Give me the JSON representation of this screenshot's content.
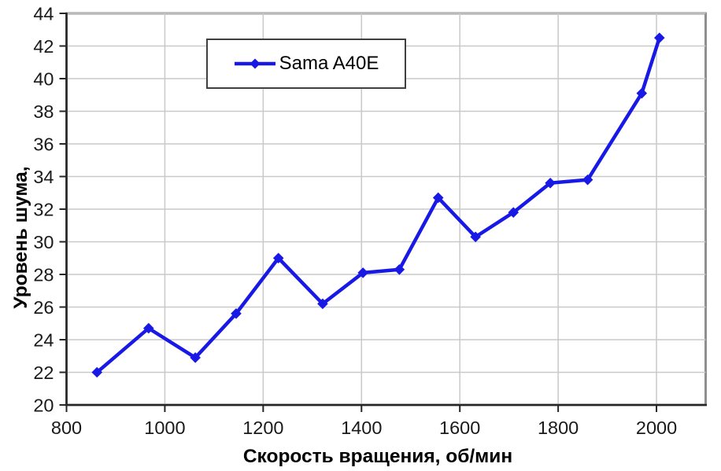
{
  "chart_data": {
    "type": "line",
    "title": "",
    "xlabel": "Скорость вращения, об/мин",
    "ylabel": "Уровень шума,",
    "xlim": [
      800,
      2100
    ],
    "ylim": [
      20,
      44
    ],
    "x_ticks": [
      800,
      1000,
      1200,
      1400,
      1600,
      1800,
      2000
    ],
    "y_ticks": [
      20,
      22,
      24,
      26,
      28,
      30,
      32,
      34,
      36,
      38,
      40,
      42,
      44
    ],
    "grid": true,
    "legend_position": "top-center",
    "series": [
      {
        "name": "Sama A40E",
        "color": "#1919e6",
        "marker": "diamond",
        "x": [
          862,
          967,
          1062,
          1145,
          1231,
          1321,
          1403,
          1477,
          1556,
          1632,
          1709,
          1784,
          1860,
          1970,
          2006
        ],
        "y": [
          22.0,
          24.7,
          22.9,
          25.6,
          29.0,
          26.2,
          28.1,
          28.3,
          32.7,
          30.3,
          31.8,
          33.6,
          33.8,
          39.1,
          42.5
        ]
      }
    ]
  },
  "legend": {
    "label": "Sama A40E"
  },
  "colors": {
    "background": "#ffffff",
    "line": "#1919e6",
    "grid": "#c9c9c9",
    "axis": "#262626",
    "plot_border": "#8f8f8f",
    "legend_border": "#3f3f3f",
    "text": "#1a1a1a"
  }
}
